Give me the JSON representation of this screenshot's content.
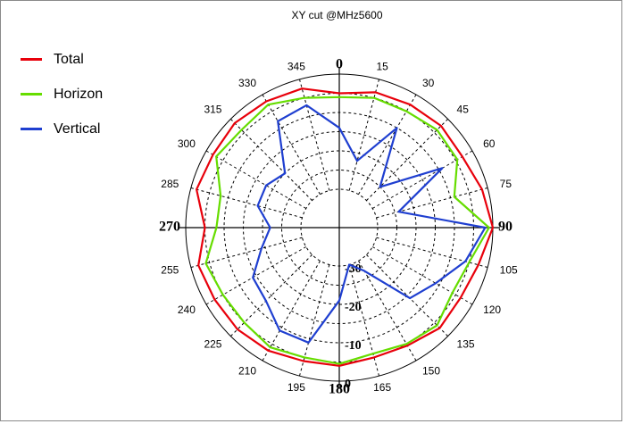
{
  "chart_data": {
    "type": "polar-line",
    "title": "XY cut @MHz5600",
    "angle_labels": [
      "0",
      "15",
      "30",
      "45",
      "60",
      "75",
      "90",
      "105",
      "120",
      "135",
      "150",
      "165",
      "180",
      "195",
      "210",
      "225",
      "240",
      "255",
      "270",
      "285",
      "300",
      "315",
      "330",
      "345"
    ],
    "radial_labels": [
      "-30",
      "-20",
      "-10",
      "0"
    ],
    "radial_range": [
      -40,
      0
    ],
    "grid": true,
    "legend_placement": "top-left",
    "series": [
      {
        "name": "Total",
        "color": "#e8000b",
        "angles": [
          0,
          15,
          30,
          45,
          60,
          75,
          90,
          105,
          120,
          135,
          150,
          165,
          180,
          195,
          210,
          225,
          240,
          255,
          270,
          285,
          300,
          315,
          330,
          345
        ],
        "values": [
          -5,
          -3.5,
          -3,
          -2.5,
          -3,
          -1.5,
          0,
          -2.5,
          -3.5,
          -3,
          -4.5,
          -5,
          -4,
          -4,
          -3,
          -2.5,
          -2.5,
          -2,
          -5,
          -1.5,
          -2,
          -1.5,
          -2,
          -2.5
        ]
      },
      {
        "name": "Horizon",
        "color": "#66dd00",
        "angles": [
          0,
          15,
          30,
          45,
          60,
          75,
          90,
          105,
          120,
          135,
          150,
          165,
          180,
          195,
          210,
          225,
          240,
          255,
          270,
          285,
          300,
          315,
          330,
          345
        ],
        "values": [
          -6,
          -5,
          -5,
          -4,
          -4.5,
          -9,
          -1,
          -5,
          -6,
          -4,
          -5,
          -6,
          -4.5,
          -5,
          -4,
          -5,
          -5,
          -4,
          -8,
          -8,
          -3,
          -4,
          -3,
          -5
        ]
      },
      {
        "name": "Vertical",
        "color": "#1f3fd0",
        "angles": [
          0,
          15,
          30,
          45,
          60,
          75,
          90,
          105,
          120,
          135,
          150,
          165,
          180,
          195,
          210,
          225,
          240,
          255,
          270,
          285,
          300,
          315,
          330,
          345
        ],
        "values": [
          -14,
          -22,
          -10,
          -25,
          -9,
          -24,
          -2,
          -6,
          -11,
          -14,
          -27,
          -30,
          -21,
          -9,
          -9,
          -13,
          -14,
          -19,
          -22,
          -18,
          -18,
          -20,
          -8,
          -7
        ]
      }
    ]
  }
}
